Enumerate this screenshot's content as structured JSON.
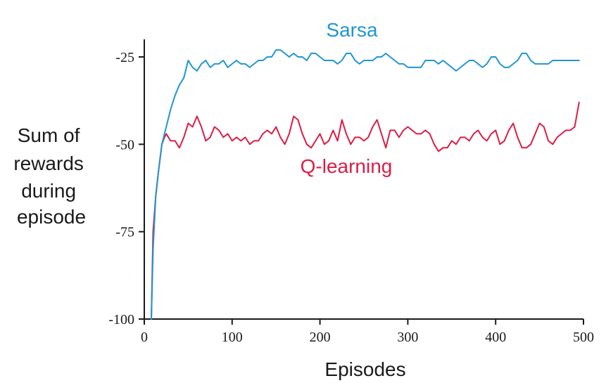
{
  "chart_data": {
    "type": "line",
    "title": "",
    "xlabel": "Episodes",
    "ylabel_lines": [
      "Sum of",
      "rewards",
      "during",
      "episode"
    ],
    "xlim": [
      0,
      500
    ],
    "ylim": [
      -100,
      -20
    ],
    "x_ticks": [
      0,
      100,
      200,
      300,
      400,
      500
    ],
    "y_ticks": [
      -25,
      -50,
      -75,
      -100
    ],
    "x_tick_labels": [
      "0",
      "100",
      "200",
      "300",
      "400",
      "500"
    ],
    "y_tick_labels": [
      "-25",
      "-50",
      "-75",
      "-100"
    ],
    "grid": false,
    "legend": "inline labels",
    "series": [
      {
        "name": "Sarsa",
        "color": "#1f96d3",
        "x": [
          8,
          10,
          13,
          16,
          20,
          25,
          30,
          35,
          40,
          45,
          50,
          55,
          60,
          65,
          70,
          75,
          80,
          85,
          90,
          95,
          100,
          105,
          110,
          115,
          120,
          125,
          130,
          135,
          140,
          145,
          150,
          155,
          160,
          165,
          170,
          175,
          180,
          185,
          190,
          195,
          200,
          205,
          210,
          215,
          220,
          225,
          230,
          235,
          240,
          245,
          250,
          255,
          260,
          265,
          270,
          275,
          280,
          285,
          290,
          295,
          300,
          305,
          310,
          315,
          320,
          325,
          330,
          335,
          340,
          345,
          350,
          355,
          360,
          365,
          370,
          375,
          380,
          385,
          390,
          395,
          400,
          405,
          410,
          415,
          420,
          425,
          430,
          435,
          440,
          445,
          450,
          455,
          460,
          465,
          470,
          475,
          480,
          485,
          490,
          495
        ],
        "y": [
          -100,
          -80,
          -65,
          -58,
          -50,
          -45,
          -40,
          -36,
          -33,
          -31,
          -26,
          -28,
          -29,
          -27,
          -26,
          -28,
          -27,
          -27,
          -26,
          -28,
          -27,
          -26,
          -27,
          -27,
          -28,
          -27,
          -26,
          -26,
          -25,
          -25,
          -23,
          -23,
          -24,
          -25,
          -24,
          -25,
          -25,
          -26,
          -24,
          -24,
          -25,
          -26,
          -26,
          -26,
          -27,
          -26,
          -24,
          -24,
          -26,
          -27,
          -26,
          -26,
          -26,
          -25,
          -25,
          -24,
          -25,
          -26,
          -27,
          -27,
          -28,
          -28,
          -28,
          -28,
          -26,
          -26,
          -26,
          -27,
          -26,
          -27,
          -28,
          -29,
          -28,
          -27,
          -26,
          -26,
          -27,
          -28,
          -27,
          -25,
          -25,
          -27,
          -28,
          -28,
          -27,
          -26,
          -24,
          -24,
          -26,
          -27,
          -27,
          -27,
          -27,
          -26,
          -26,
          -26,
          -26,
          -26,
          -26,
          -26
        ]
      },
      {
        "name": "Q-learning",
        "color": "#dc1c45",
        "x": [
          8,
          10,
          13,
          16,
          20,
          23,
          25,
          30,
          35,
          40,
          45,
          50,
          55,
          60,
          65,
          70,
          75,
          80,
          85,
          90,
          95,
          100,
          105,
          110,
          115,
          120,
          125,
          130,
          135,
          140,
          145,
          150,
          155,
          160,
          165,
          170,
          175,
          180,
          185,
          190,
          195,
          200,
          205,
          210,
          215,
          220,
          225,
          230,
          235,
          240,
          245,
          250,
          255,
          260,
          265,
          270,
          275,
          280,
          285,
          290,
          295,
          300,
          305,
          310,
          315,
          320,
          325,
          330,
          335,
          340,
          345,
          350,
          355,
          360,
          365,
          370,
          375,
          380,
          385,
          390,
          395,
          400,
          405,
          410,
          415,
          420,
          425,
          430,
          435,
          440,
          445,
          450,
          455,
          460,
          465,
          470,
          475,
          480,
          485,
          490,
          495
        ],
        "y": [
          -100,
          -75,
          -65,
          -58,
          -50,
          -48,
          -47,
          -49,
          -49,
          -51,
          -48,
          -44,
          -45,
          -42,
          -45,
          -49,
          -48,
          -45,
          -46,
          -48,
          -47,
          -49,
          -48,
          -49,
          -48,
          -50,
          -49,
          -49,
          -47,
          -46,
          -47,
          -45,
          -48,
          -50,
          -47,
          -42,
          -43,
          -47,
          -50,
          -51,
          -49,
          -47,
          -50,
          -49,
          -46,
          -49,
          -43,
          -47,
          -50,
          -48,
          -48,
          -49,
          -48,
          -45,
          -43,
          -47,
          -51,
          -46,
          -46,
          -48,
          -46,
          -45,
          -46,
          -47,
          -47,
          -46,
          -47,
          -50,
          -52,
          -51,
          -51,
          -49,
          -50,
          -48,
          -48,
          -49,
          -47,
          -46,
          -48,
          -49,
          -47,
          -46,
          -50,
          -49,
          -46,
          -44,
          -48,
          -51,
          -51,
          -50,
          -47,
          -44,
          -45,
          -49,
          -50,
          -48,
          -47,
          -46,
          -46,
          -45,
          -38
        ]
      }
    ]
  }
}
